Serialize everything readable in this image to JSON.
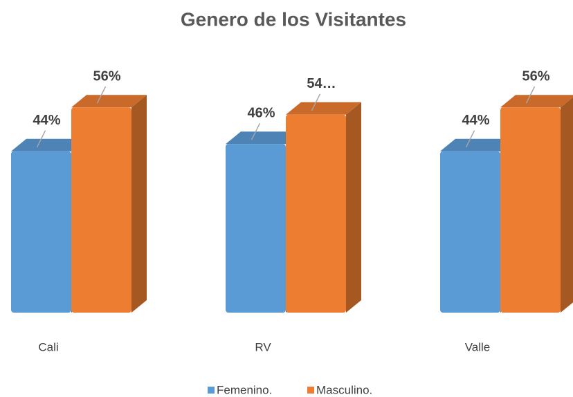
{
  "chart_data": {
    "type": "bar3d",
    "title": "Genero de los Visitantes",
    "categories": [
      "Cali",
      "RV",
      "Valle"
    ],
    "series": [
      {
        "name": "Femenino.",
        "color": "#5b9bd5",
        "values": [
          44,
          46,
          44
        ],
        "value_labels": [
          "44%",
          "46%",
          "44%"
        ]
      },
      {
        "name": "Masculino.",
        "color": "#ed7d31",
        "values": [
          56,
          54,
          56
        ],
        "value_labels": [
          "56%",
          "54…",
          "56%"
        ]
      }
    ],
    "legend": "bottom"
  }
}
